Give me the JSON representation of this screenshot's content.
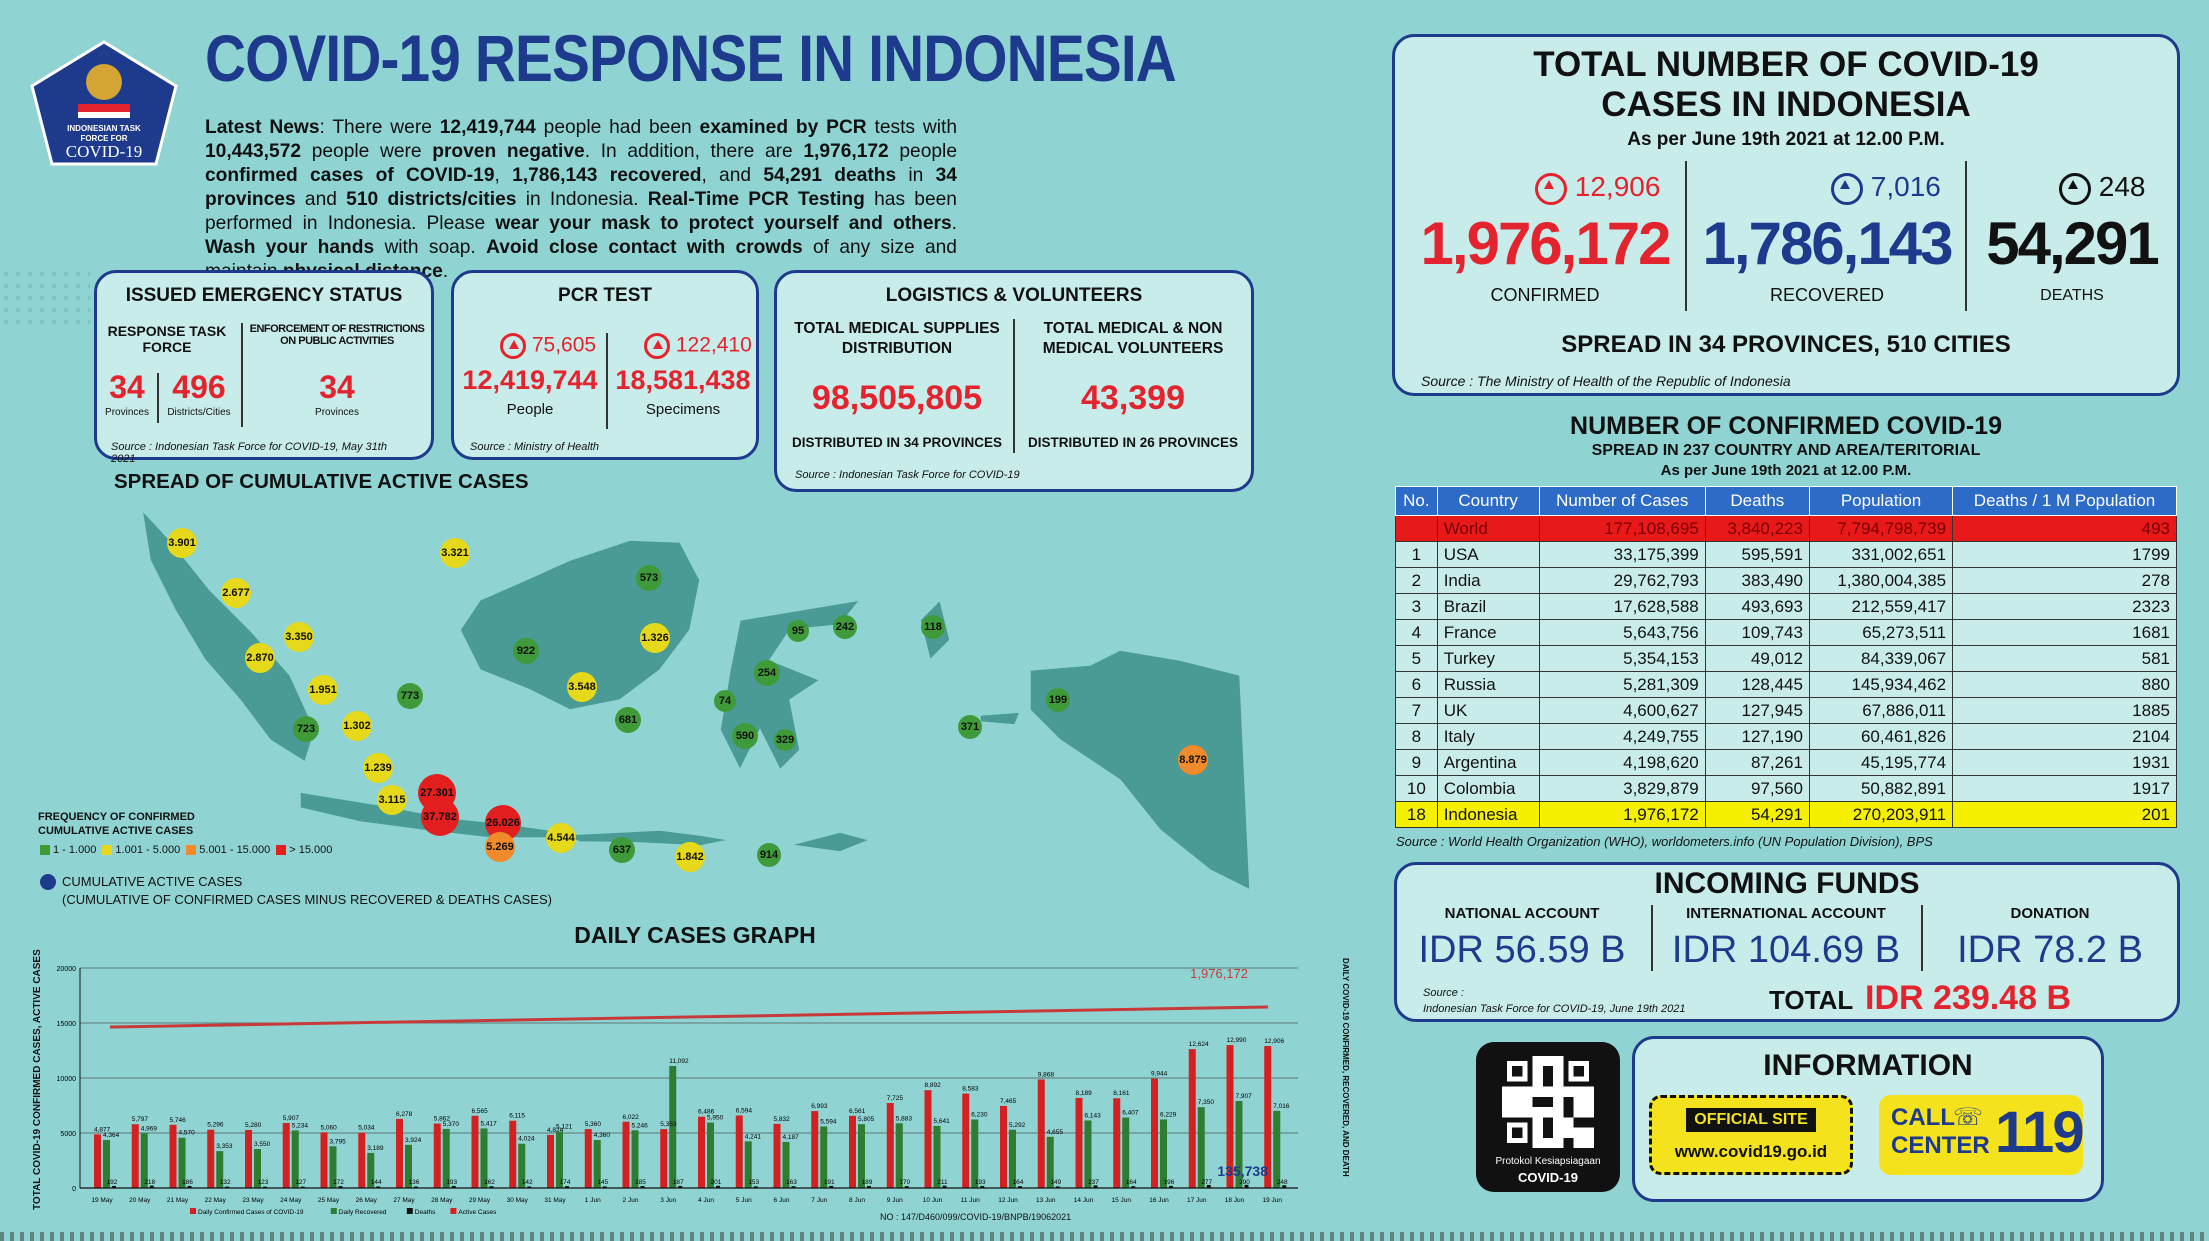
{
  "header": {
    "title": "COVID-19 RESPONSE IN INDONESIA",
    "logo_text_1": "INDONESIAN TASK",
    "logo_text_2": "FORCE FOR",
    "logo_text_3": "COVID-19",
    "news_label": "Latest News",
    "news_parts": [
      ": There were ",
      "12,419,744",
      " people had been ",
      "examined by PCR",
      " tests with ",
      "10,443,572",
      " people were ",
      "proven negative",
      ". In addition, there are ",
      "1,976,172",
      " people ",
      "confirmed cases of COVID-19",
      ", ",
      "1,786,143",
      " ",
      "recovered",
      ", and ",
      "54,291",
      " ",
      "deaths",
      " in ",
      "34",
      " ",
      "provinces",
      " and ",
      "510",
      " ",
      "districts/cities",
      " in Indonesia. ",
      "Real-Time PCR Testing",
      " has been performed in Indonesia. Please ",
      "wear your mask to protect yourself and others",
      ". ",
      "Wash your hands",
      " with soap. ",
      "Avoid close contact with crowds",
      " of any size and maintain ",
      "physical distance",
      "."
    ]
  },
  "emergency": {
    "title": "ISSUED EMERGENCY STATUS",
    "col1_label": "RESPONSE TASK FORCE",
    "col2_label": "ENFORCEMENT OF RESTRICTIONS ON PUBLIC ACTIVITIES",
    "v1": "34",
    "l1": "Provinces",
    "v2": "496",
    "l2": "Districts/Cities",
    "v3": "34",
    "l3": "Provinces",
    "source": "Source : Indonesian Task Force for COVID-19, May 31th 2021"
  },
  "pcr": {
    "title": "PCR TEST",
    "inc1": "75,605",
    "inc2": "122,410",
    "v1": "12,419,744",
    "l1": "People",
    "v2": "18,581,438",
    "l2": "Specimens",
    "source": "Source : Ministry of Health"
  },
  "logistics": {
    "title": "LOGISTICS & VOLUNTEERS",
    "col1_label": "TOTAL MEDICAL SUPPLIES DISTRIBUTION",
    "col1_value": "98,505,805",
    "col1_note": "DISTRIBUTED IN 34 PROVINCES",
    "col2_label": "TOTAL MEDICAL & NON MEDICAL VOLUNTEERS",
    "col2_value": "43,399",
    "col2_note": "DISTRIBUTED IN 26 PROVINCES",
    "source": "Source : Indonesian Task Force for COVID-19"
  },
  "map": {
    "title": "SPREAD OF CUMULATIVE ACTIVE CASES",
    "legend_title": "FREQUENCY OF CONFIRMED CUMULATIVE ACTIVE CASES",
    "legend": [
      {
        "label": "1 - 1.000",
        "color": "#3f9a3a"
      },
      {
        "label": "1.001 - 5.000",
        "color": "#e6d81a"
      },
      {
        "label": "5.001 - 15.000",
        "color": "#f08a2a"
      },
      {
        "label": "> 15.000",
        "color": "#e31e1e"
      }
    ],
    "cum_label": "CUMULATIVE ACTIVE CASES",
    "cum_note": "(CUMULATIVE OF CONFIRMED CASES MINUS RECOVERED & DEATHS CASES)",
    "bubbles": [
      {
        "v": "3.901",
        "c": "#e6d81a"
      },
      {
        "v": "3.321",
        "c": "#e6d81a"
      },
      {
        "v": "2.677",
        "c": "#e6d81a"
      },
      {
        "v": "3.350",
        "c": "#e6d81a"
      },
      {
        "v": "2.870",
        "c": "#e6d81a"
      },
      {
        "v": "1.951",
        "c": "#e6d81a"
      },
      {
        "v": "773",
        "c": "#3f9a3a"
      },
      {
        "v": "723",
        "c": "#3f9a3a"
      },
      {
        "v": "1.302",
        "c": "#e6d81a"
      },
      {
        "v": "1.239",
        "c": "#e6d81a"
      },
      {
        "v": "3.115",
        "c": "#e6d81a"
      },
      {
        "v": "27.301",
        "c": "#e31e1e"
      },
      {
        "v": "37.782",
        "c": "#e31e1e"
      },
      {
        "v": "26.026",
        "c": "#e31e1e"
      },
      {
        "v": "5.269",
        "c": "#f08a2a"
      },
      {
        "v": "4.544",
        "c": "#e6d81a"
      },
      {
        "v": "922",
        "c": "#3f9a3a"
      },
      {
        "v": "3.548",
        "c": "#e6d81a"
      },
      {
        "v": "573",
        "c": "#3f9a3a"
      },
      {
        "v": "1.326",
        "c": "#e6d81a"
      },
      {
        "v": "681",
        "c": "#3f9a3a"
      },
      {
        "v": "637",
        "c": "#3f9a3a"
      },
      {
        "v": "1.842",
        "c": "#e6d81a"
      },
      {
        "v": "95",
        "c": "#3f9a3a"
      },
      {
        "v": "242",
        "c": "#3f9a3a"
      },
      {
        "v": "254",
        "c": "#3f9a3a"
      },
      {
        "v": "74",
        "c": "#3f9a3a"
      },
      {
        "v": "590",
        "c": "#3f9a3a"
      },
      {
        "v": "329",
        "c": "#3f9a3a"
      },
      {
        "v": "914",
        "c": "#3f9a3a"
      },
      {
        "v": "118",
        "c": "#3f9a3a"
      },
      {
        "v": "371",
        "c": "#3f9a3a"
      },
      {
        "v": "199",
        "c": "#3f9a3a"
      },
      {
        "v": "8.879",
        "c": "#f08a2a"
      }
    ]
  },
  "totals": {
    "title1": "TOTAL NUMBER OF COVID-19",
    "title2": "CASES IN INDONESIA",
    "asof": "As per June 19th 2021 at 12.00 P.M.",
    "confirmed_inc": "12,906",
    "confirmed": "1,976,172",
    "confirmed_label": "CONFIRMED",
    "recovered_inc": "7,016",
    "recovered": "1,786,143",
    "recovered_label": "RECOVERED",
    "deaths_inc": "248",
    "deaths": "54,291",
    "deaths_label": "DEATHS",
    "spread": "SPREAD IN 34 PROVINCES, 510 CITIES",
    "source": "Source : The Ministry of Health of the Republic of Indonesia",
    "colors": {
      "confirmed": "#e3232d",
      "recovered": "#1e3a8c",
      "deaths": "#111111"
    }
  },
  "world": {
    "title": "NUMBER OF CONFIRMED COVID-19",
    "subtitle": "SPREAD IN 237 COUNTRY AND AREA/TERITORIAL",
    "asof": "As per June 19th 2021 at 12.00 P.M.",
    "headers": [
      "No.",
      "Country",
      "Number of Cases",
      "Deaths",
      "Population",
      "Deaths / 1 M Population"
    ],
    "rows": [
      [
        "",
        "World",
        "177,108,695",
        "3,840,223",
        "7,794,798,739",
        "493"
      ],
      [
        "1",
        "USA",
        "33,175,399",
        "595,591",
        "331,002,651",
        "1799"
      ],
      [
        "2",
        "India",
        "29,762,793",
        "383,490",
        "1,380,004,385",
        "278"
      ],
      [
        "3",
        "Brazil",
        "17,628,588",
        "493,693",
        "212,559,417",
        "2323"
      ],
      [
        "4",
        "France",
        "5,643,756",
        "109,743",
        "65,273,511",
        "1681"
      ],
      [
        "5",
        "Turkey",
        "5,354,153",
        "49,012",
        "84,339,067",
        "581"
      ],
      [
        "6",
        "Russia",
        "5,281,309",
        "128,445",
        "145,934,462",
        "880"
      ],
      [
        "7",
        "UK",
        "4,600,627",
        "127,945",
        "67,886,011",
        "1885"
      ],
      [
        "8",
        "Italy",
        "4,249,755",
        "127,190",
        "60,461,826",
        "2104"
      ],
      [
        "9",
        "Argentina",
        "4,198,620",
        "87,261",
        "45,195,774",
        "1931"
      ],
      [
        "10",
        "Colombia",
        "3,829,879",
        "97,560",
        "50,882,891",
        "1917"
      ],
      [
        "18",
        "Indonesia",
        "1,976,172",
        "54,291",
        "270,203,911",
        "201"
      ]
    ],
    "source": "Source : World Health Organization (WHO), worldometers.info (UN Population Division), BPS"
  },
  "funds": {
    "title": "INCOMING FUNDS",
    "national_label": "NATIONAL ACCOUNT",
    "national": "IDR 56.59 B",
    "international_label": "INTERNATIONAL ACCOUNT",
    "international": "IDR 104.69 B",
    "donation_label": "DONATION",
    "donation": "IDR 78.2 B",
    "total_label": "TOTAL",
    "total": "IDR 239.48 B",
    "source1": "Source :",
    "source2": "Indonesian Task Force for COVID-19, June 19th 2021"
  },
  "info": {
    "qr_label1": "Protokol Kesiapsiagaan",
    "qr_label2": "COVID-19",
    "title": "INFORMATION",
    "site_label": "OFFICIAL SITE",
    "site_url": "www.covid19.go.id",
    "call1": "CALL",
    "call2": "CENTER",
    "call_number": "119"
  },
  "chart_data": {
    "type": "bar",
    "title": "DAILY CASES GRAPH",
    "ylabel_left": "TOTAL COVID-19 CONFIRMED CASES, ACTIVE CASES",
    "ylabel_right": "DAILY COVID-19 CONFIRMED, RECOVERED, AND DEATH",
    "y_ticks": [
      "20000",
      "15000",
      "10000",
      "5000",
      "0"
    ],
    "ylim": [
      0,
      20000
    ],
    "categories": [
      "19 May",
      "20 May",
      "21 May",
      "22 May",
      "23 May",
      "24 May",
      "25 May",
      "26 May",
      "27 May",
      "28 May",
      "29 May",
      "30 May",
      "31 May",
      "1 Jun",
      "2 Jun",
      "3 Jun",
      "4 Jun",
      "5 Jun",
      "6 Jun",
      "7 Jun",
      "8 Jun",
      "9 Jun",
      "10 Jun",
      "11 Jun",
      "12 Jun",
      "13 Jun",
      "14 Jun",
      "15 Jun",
      "16 Jun",
      "17 Jun",
      "18 Jun",
      "19 Jun"
    ],
    "series": [
      {
        "name": "Daily Confirmed Cases of COVID-19",
        "color": "#d42020",
        "values": [
          4877,
          5797,
          5746,
          5296,
          5280,
          5907,
          5060,
          5034,
          6278,
          5862,
          6565,
          6115,
          4824,
          5360,
          6022,
          5353,
          6486,
          6594,
          5832,
          6993,
          6561,
          7725,
          8892,
          8583,
          7465,
          9868,
          8189,
          8161,
          9944,
          12624,
          12990,
          12906
        ]
      },
      {
        "name": "Daily Recovered",
        "color": "#2e7d32",
        "values": [
          4364,
          4969,
          4570,
          3353,
          3550,
          5234,
          3795,
          3189,
          3924,
          5370,
          5417,
          4024,
          5121,
          4360,
          5246,
          11092,
          5950,
          4241,
          4187,
          5594,
          5805,
          5883,
          5641,
          6230,
          5292,
          4655,
          6143,
          6407,
          6229,
          7350,
          7907,
          7016
        ]
      },
      {
        "name": "Deaths",
        "color": "#111111",
        "values": [
          192,
          218,
          186,
          132,
          123,
          127,
          172,
          144,
          136,
          193,
          162,
          142,
          174,
          145,
          185,
          187,
          201,
          153,
          163,
          191,
          189,
          170,
          211,
          193,
          164,
          149,
          237,
          164,
          196,
          277,
          290,
          248
        ]
      },
      {
        "name": "Active Cases",
        "color": "#d42020"
      }
    ],
    "line_end_label": "1,976,172",
    "active_label": "135,738"
  },
  "footer_note": "NO : 147/D460/099/COVID-19/BNPB/19062021"
}
